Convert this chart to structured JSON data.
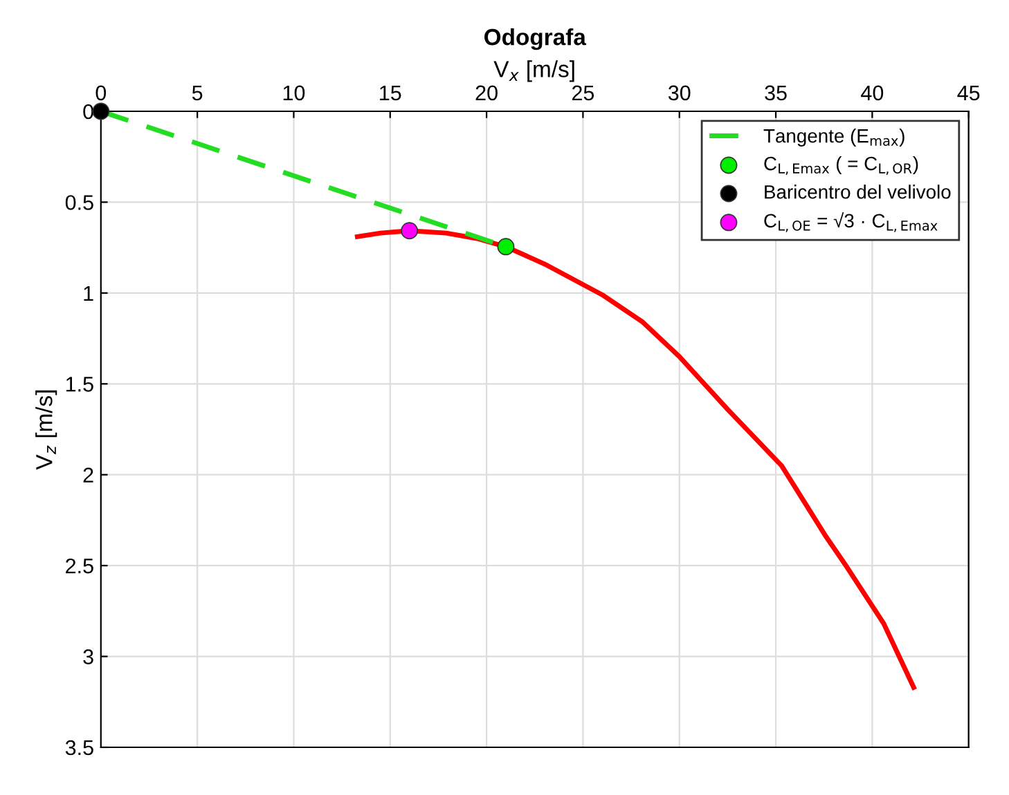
{
  "chart_data": {
    "type": "line",
    "title": "Odografa",
    "xlabel": "V$_{x}$ [m/s]",
    "ylabel": "V$_{z}$ [m/s]",
    "xlim": [
      0,
      45
    ],
    "xticks": [
      0,
      5,
      10,
      15,
      20,
      25,
      30,
      35,
      40,
      45
    ],
    "ylim": [
      3.5,
      0
    ],
    "yticks": [
      0,
      0.5,
      1,
      1.5,
      2,
      2.5,
      3,
      3.5
    ],
    "grid": true,
    "legend": "top right",
    "series": [
      {
        "color": "#ff0000",
        "line_style": "solid",
        "x": [
          13.3,
          14.5,
          16,
          17.9,
          19.5,
          21,
          23,
          26,
          28.1,
          30,
          32.5,
          35.3,
          37.6,
          38.7,
          40.6,
          42.15
        ],
        "values": [
          0.69,
          0.67,
          0.657,
          0.67,
          0.7,
          0.745,
          0.84,
          1.01,
          1.16,
          1.35,
          1.64,
          1.95,
          2.34,
          2.51,
          2.82,
          3.17
        ]
      },
      {
        "type": "line",
        "name": "Tangente (E$_{max}$)",
        "color": "#22dd22",
        "line_style": "dashed",
        "x": [
          0,
          21
        ],
        "values": [
          0,
          0.745
        ]
      },
      {
        "type": "scatter",
        "name": "C$_{L,Emax}$ ( = C$_{L,OR}$)",
        "color": "#00ee00",
        "marker": "circle",
        "x": [
          21
        ],
        "values": [
          0.745
        ]
      },
      {
        "type": "scatter",
        "name": "Baricentro del velivolo",
        "color": "#000000",
        "marker": "circle",
        "x": [
          0
        ],
        "values": [
          0
        ]
      },
      {
        "type": "scatter",
        "name": "C$_{L,OE}$ = √3 · C$_{L,Emax}$",
        "color": "#ff00ff",
        "marker": "circle",
        "x": [
          16
        ],
        "values": [
          0.657
        ]
      }
    ]
  }
}
